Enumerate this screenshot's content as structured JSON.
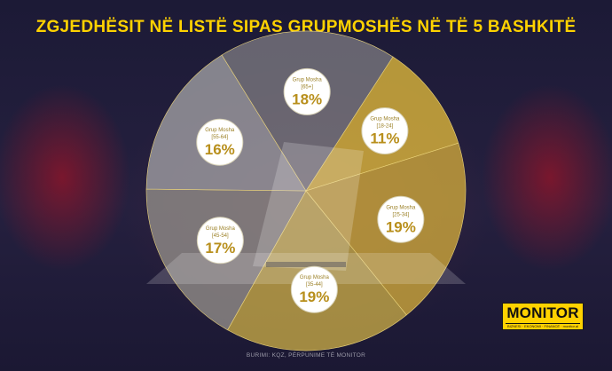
{
  "title": "ZGJEDHËSIT NË LISTË SIPAS GRUPMOSHËS NË TË 5 BASHKITË",
  "source": "BURIMI: KQZ, PËRPUNIME TË MONITOR",
  "logo": {
    "word": "MONITOR",
    "tagline": "BIZNESI · EKONOMI · FINANCË · monitor.al"
  },
  "chart_data": {
    "type": "pie",
    "title": "ZGJEDHËSIT NË LISTË SIPAS GRUPMOSHËS NË TË 5 BASHKITË",
    "slice_label": "Grup Mosha",
    "categories": [
      "[18-24]",
      "[25-34]",
      "[35-44]",
      "[45-54]",
      "[55-64]",
      "[65+]"
    ],
    "values": [
      11,
      19,
      19,
      17,
      16,
      18
    ],
    "value_suffix": "%",
    "colors": [
      "#d8b23a",
      "#c9a43a",
      "#bfa445",
      "#8f8a86",
      "#9c9ba0",
      "#77757c"
    ],
    "tag_labels": [
      "[18-24]",
      "[25-34]",
      "[35-44]",
      "[45-54]",
      "[55-64]",
      "[65+]"
    ]
  }
}
